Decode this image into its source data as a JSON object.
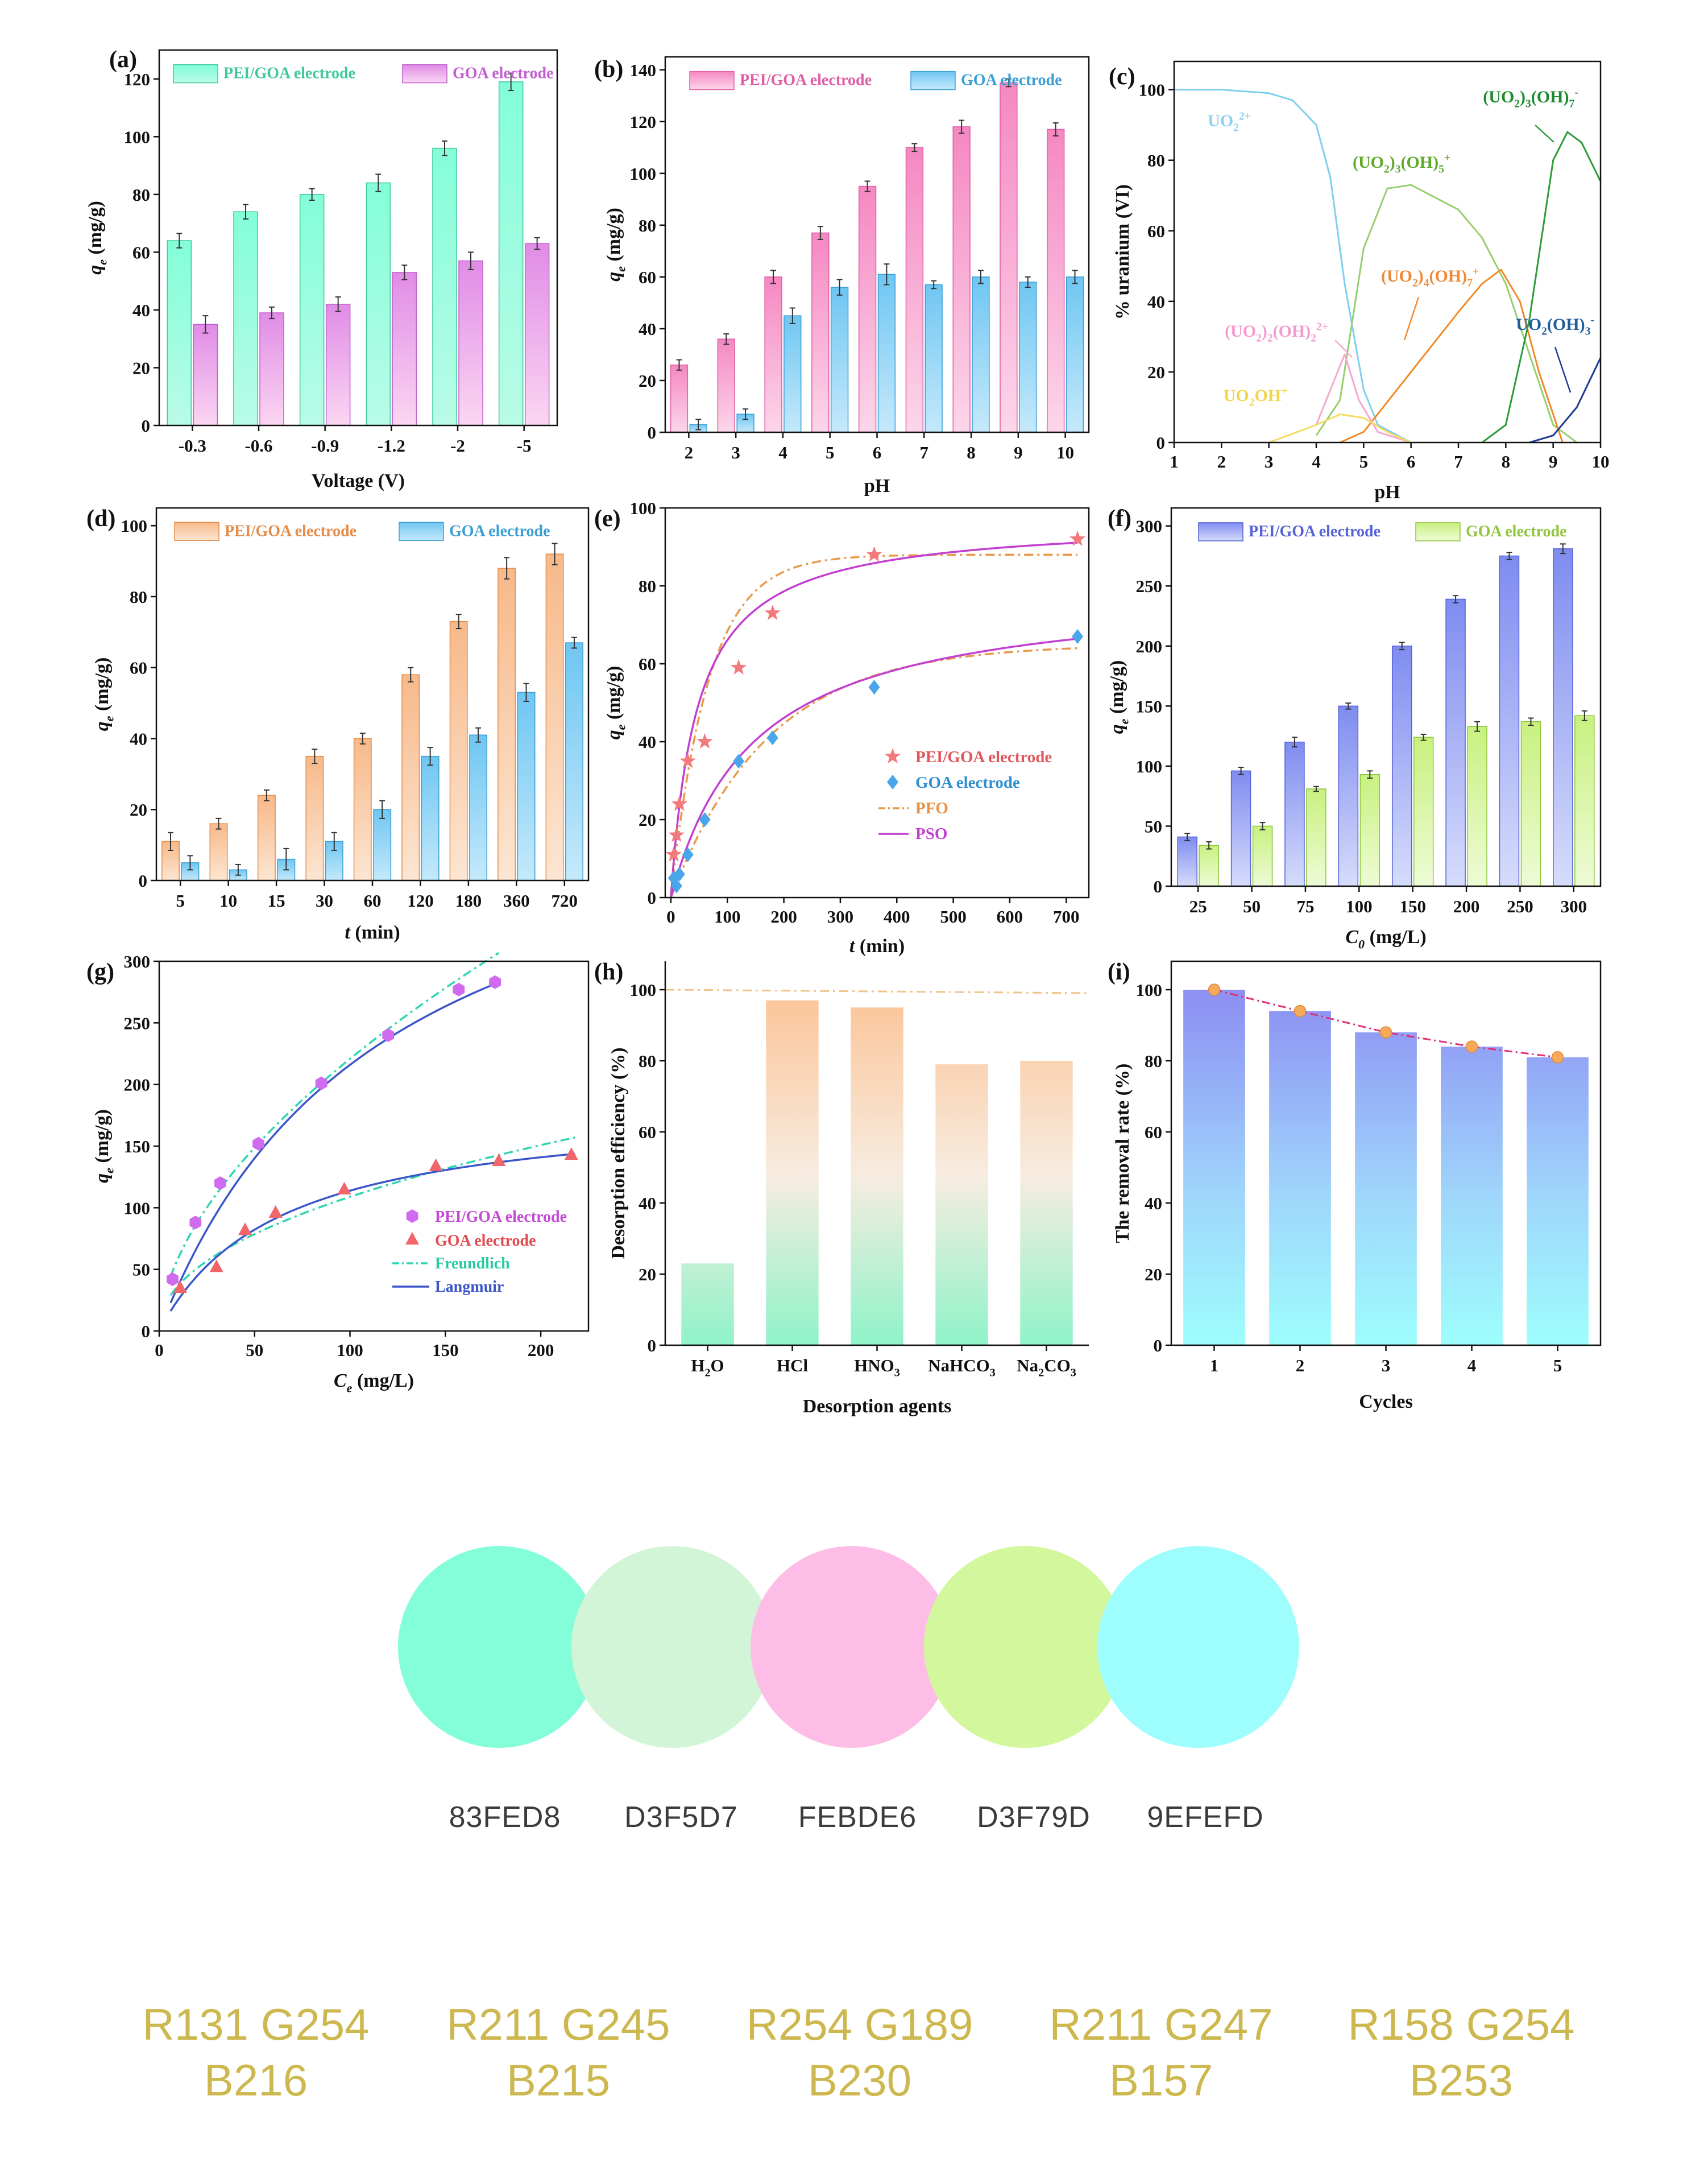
{
  "chart_data": [
    {
      "id": "a",
      "panel": "(a)",
      "type": "bar",
      "categories": [
        "-0.3",
        "-0.6",
        "-0.9",
        "-1.2",
        "-2",
        "-5"
      ],
      "series": [
        {
          "name": "PEI/GOA electrode",
          "values": [
            64,
            74,
            80,
            84,
            96,
            119
          ],
          "errors": [
            2.5,
            2.5,
            2,
            3,
            2.5,
            3
          ],
          "color": "#83FED8"
        },
        {
          "name": "GOA electrode",
          "values": [
            35,
            39,
            42,
            53,
            57,
            63
          ],
          "errors": [
            3,
            2,
            2.5,
            2.5,
            3,
            2
          ],
          "color": "#FEBDE6"
        }
      ],
      "xlabel": "Voltage (V)",
      "ylabel": "q_e (mg/g)",
      "ylim": [
        0,
        130
      ],
      "yticks": [
        "0",
        "20",
        "40",
        "60",
        "80",
        "100",
        "120"
      ],
      "legend": "top"
    },
    {
      "id": "b",
      "panel": "(b)",
      "type": "bar",
      "categories": [
        "2",
        "3",
        "4",
        "5",
        "6",
        "7",
        "8",
        "9",
        "10"
      ],
      "series": [
        {
          "name": "PEI/GOA electrode",
          "values": [
            26,
            36,
            60,
            77,
            95,
            110,
            118,
            135,
            117
          ],
          "errors": [
            2,
            2,
            2.5,
            2.5,
            2,
            1.5,
            2.5,
            1.5,
            2.5
          ],
          "color": "#F98CC5"
        },
        {
          "name": "GOA electrode",
          "values": [
            3,
            7,
            45,
            56,
            61,
            57,
            60,
            58,
            60
          ],
          "errors": [
            2,
            2,
            3,
            3,
            4,
            1.5,
            2.5,
            2,
            2.5
          ],
          "color": "#7FCBF2"
        }
      ],
      "xlabel": "pH",
      "ylabel": "q_e (mg/g)",
      "ylim": [
        0,
        145
      ],
      "yticks": [
        "0",
        "20",
        "40",
        "60",
        "80",
        "100",
        "120",
        "140"
      ],
      "legend": "top"
    },
    {
      "id": "c",
      "panel": "(c)",
      "type": "line",
      "xlabel": "pH",
      "ylabel": "% uranium (VI)",
      "xlim": [
        1,
        10
      ],
      "ylim": [
        0,
        108
      ],
      "xticks": [
        "1",
        "2",
        "3",
        "4",
        "5",
        "6",
        "7",
        "8",
        "9",
        "10"
      ],
      "yticks": [
        "0",
        "20",
        "40",
        "60",
        "80",
        "100"
      ],
      "series": [
        {
          "name": "UO2 2+",
          "color": "#7fd0ee",
          "x": [
            1,
            2,
            3,
            3.5,
            4,
            4.3,
            4.6,
            5,
            5.3,
            6
          ],
          "y": [
            100,
            100,
            99,
            97,
            90,
            75,
            45,
            15,
            5,
            0
          ]
        },
        {
          "name": "(UO2)3(OH)5 +",
          "color": "#98cf6e",
          "x": [
            4,
            4.5,
            5,
            5.5,
            6,
            7,
            7.5,
            8,
            8.5,
            9,
            9.5
          ],
          "y": [
            2,
            12,
            55,
            72,
            73,
            66,
            58,
            45,
            25,
            5,
            0
          ]
        },
        {
          "name": "(UO2)4(OH)7 +",
          "color": "#f28a28",
          "x": [
            4.5,
            5,
            6,
            7,
            7.5,
            7.9,
            8.3,
            8.7,
            9.2
          ],
          "y": [
            0,
            3,
            20,
            37,
            45,
            49,
            40,
            20,
            0
          ]
        },
        {
          "name": "(UO2)2(OH)2 2+",
          "color": "#f6a6d0",
          "x": [
            4,
            4.3,
            4.6,
            4.9,
            5.3,
            6
          ],
          "y": [
            5,
            15,
            25,
            12,
            3,
            0
          ]
        },
        {
          "name": "UO2OH+",
          "color": "#f3dc63",
          "x": [
            3,
            4,
            4.5,
            5,
            5.5,
            6
          ],
          "y": [
            0,
            5,
            8,
            7,
            3,
            0
          ]
        },
        {
          "name": "(UO2)3(OH)7 -",
          "color": "#2e9a3a",
          "x": [
            7.5,
            8,
            8.5,
            9,
            9.3,
            9.6,
            10
          ],
          "y": [
            0,
            5,
            35,
            80,
            88,
            85,
            74
          ]
        },
        {
          "name": "UO2(OH)3 -",
          "color": "#1f3a94",
          "x": [
            8.5,
            9,
            9.5,
            10
          ],
          "y": [
            0,
            2,
            10,
            24
          ]
        }
      ],
      "annotations": [
        "UO2 2+",
        "(UO2)3(OH)7 -",
        "(UO2)3(OH)5 +",
        "(UO2)4(OH)7 +",
        "(UO2)2(OH)2 2+",
        "UO2(OH)3 -",
        "UO2OH+"
      ]
    },
    {
      "id": "d",
      "panel": "(d)",
      "type": "bar",
      "categories": [
        "5",
        "10",
        "15",
        "30",
        "60",
        "120",
        "180",
        "360",
        "720"
      ],
      "series": [
        {
          "name": "PEI/GOA electrode",
          "values": [
            11,
            16,
            24,
            35,
            40,
            58,
            73,
            88,
            92
          ],
          "errors": [
            2.5,
            1.5,
            1.5,
            2,
            1.5,
            2,
            2,
            3,
            3
          ],
          "color": "#F9C69A"
        },
        {
          "name": "GOA electrode",
          "values": [
            5,
            3,
            6,
            11,
            20,
            35,
            41,
            53,
            67
          ],
          "errors": [
            2,
            1.5,
            3,
            2.5,
            2.5,
            2.5,
            2,
            2.5,
            1.5
          ],
          "color": "#7FCBF2"
        }
      ],
      "xlabel": "t (min)",
      "ylabel": "q_e (mg/g)",
      "ylim": [
        0,
        105
      ],
      "yticks": [
        "0",
        "20",
        "40",
        "60",
        "80",
        "100"
      ],
      "legend": "top"
    },
    {
      "id": "e",
      "panel": "(e)",
      "type": "scatter",
      "xlabel": "t (min)",
      "ylabel": "q_e (mg/g)",
      "xlim": [
        -10,
        740
      ],
      "ylim": [
        0,
        100
      ],
      "xticks": [
        "0",
        "100",
        "200",
        "300",
        "400",
        "500",
        "600",
        "700"
      ],
      "yticks": [
        "0",
        "20",
        "40",
        "60",
        "80",
        "100"
      ],
      "series": [
        {
          "name": "PEI/GOA electrode",
          "marker": "star",
          "color": "#f4797d",
          "x": [
            5,
            10,
            15,
            30,
            60,
            120,
            180,
            360,
            720
          ],
          "y": [
            11,
            16,
            24,
            35,
            40,
            59,
            73,
            88,
            92
          ]
        },
        {
          "name": "GOA electrode",
          "marker": "diamond",
          "color": "#4aa6ea",
          "x": [
            5,
            10,
            15,
            30,
            60,
            120,
            180,
            360,
            720
          ],
          "y": [
            5,
            3,
            6,
            11,
            20,
            35,
            41,
            54,
            67
          ]
        }
      ],
      "fits": [
        {
          "name": "PFO",
          "style": "dashdot",
          "color": "#e89a4b",
          "curves": [
            {
              "type": "pfo",
              "qe": 88,
              "k": 0.015
            },
            {
              "type": "pfo",
              "qe": 65,
              "k": 0.0058
            }
          ]
        },
        {
          "name": "PSO",
          "style": "solid",
          "color": "#c23fcf",
          "curves": [
            {
              "type": "pso",
              "qe": 97,
              "k": 0.00022
            },
            {
              "type": "pso",
              "qe": 80,
              "k": 8.5e-05
            }
          ]
        }
      ],
      "legend": "right"
    },
    {
      "id": "f",
      "panel": "(f)",
      "type": "bar",
      "categories": [
        "25",
        "50",
        "75",
        "100",
        "150",
        "200",
        "250",
        "300"
      ],
      "series": [
        {
          "name": "PEI/GOA electrode",
          "values": [
            41,
            96,
            120,
            150,
            200,
            239,
            275,
            281
          ],
          "errors": [
            3,
            3,
            4,
            2.5,
            3,
            3,
            3,
            4
          ],
          "color": "#8E9BF2"
        },
        {
          "name": "GOA electrode",
          "values": [
            34,
            50,
            81,
            93,
            124,
            133,
            137,
            142
          ],
          "errors": [
            3,
            3,
            2,
            3,
            2.5,
            4,
            3,
            4
          ],
          "color": "#D3F79D"
        }
      ],
      "xlabel": "C_0 (mg/L)",
      "ylabel": "q_e (mg/g)",
      "ylim": [
        0,
        315
      ],
      "yticks": [
        "0",
        "50",
        "100",
        "150",
        "200",
        "250",
        "300"
      ],
      "legend": "top"
    },
    {
      "id": "g",
      "panel": "(g)",
      "type": "scatter",
      "xlabel": "C_e (mg/L)",
      "ylabel": "q_e (mg/g)",
      "xlim": [
        0,
        225
      ],
      "ylim": [
        0,
        300
      ],
      "xticks": [
        "0",
        "50",
        "100",
        "150",
        "200"
      ],
      "yticks": [
        "0",
        "50",
        "100",
        "150",
        "200",
        "250",
        "300"
      ],
      "series": [
        {
          "name": "PEI/GOA electrode",
          "marker": "hexagon",
          "color": "#d06bf0",
          "x": [
            7,
            19,
            32,
            52,
            85,
            120,
            157,
            176
          ],
          "y": [
            42,
            88,
            120,
            152,
            201,
            240,
            277,
            283
          ]
        },
        {
          "name": "GOA electrode",
          "marker": "triangle",
          "color": "#f0666a",
          "x": [
            11,
            30,
            45,
            61,
            97,
            145,
            178,
            216
          ],
          "y": [
            35,
            52,
            82,
            96,
            115,
            134,
            138,
            143
          ]
        }
      ],
      "fits": [
        {
          "name": "Freundlich",
          "style": "dashdot",
          "color": "#2fd6b0",
          "curves": [
            {
              "type": "freundlich",
              "k": 16,
              "n": 0.57,
              "xmax": 178
            },
            {
              "type": "freundlich",
              "k": 12.5,
              "n": 0.47,
              "xmax": 218
            }
          ]
        },
        {
          "name": "Langmuir",
          "style": "solid",
          "color": "#3c56c9",
          "curves": [
            {
              "type": "langmuir",
              "qm": 470,
              "kl": 0.0085,
              "xmax": 178
            },
            {
              "type": "langmuir",
              "qm": 185,
              "kl": 0.016,
              "xmax": 218
            }
          ]
        }
      ],
      "legend": "lower-right"
    },
    {
      "id": "h",
      "panel": "(h)",
      "type": "bar",
      "categories": [
        "H2O",
        "HCl",
        "HNO3",
        "NaHCO3",
        "Na2CO3"
      ],
      "series": [
        {
          "name": "",
          "values": [
            23,
            97,
            95,
            79,
            80
          ]
        }
      ],
      "reference_line": 100,
      "xlabel": "Desorption agents",
      "ylabel": "Desorption efficiency (%)",
      "ylim": [
        0,
        108
      ],
      "yticks": [
        "0",
        "20",
        "40",
        "60",
        "80",
        "100"
      ]
    },
    {
      "id": "i",
      "panel": "(i)",
      "type": "bar",
      "categories": [
        "1",
        "2",
        "3",
        "4",
        "5"
      ],
      "series": [
        {
          "name": "",
          "values": [
            100,
            94,
            88,
            84,
            81
          ]
        }
      ],
      "xlabel": "Cycles",
      "ylabel": "The removal rate (%)",
      "ylim": [
        0,
        108
      ],
      "yticks": [
        "0",
        "20",
        "40",
        "60",
        "80",
        "100"
      ]
    }
  ],
  "palette": [
    {
      "hex": "83FED8",
      "rgb_line1": "R131 G254",
      "rgb_line2": "B216",
      "color": "#83FED8"
    },
    {
      "hex": "D3F5D7",
      "rgb_line1": "R211 G245",
      "rgb_line2": "B215",
      "color": "#D3F5D7"
    },
    {
      "hex": "FEBDE6",
      "rgb_line1": "R254 G189",
      "rgb_line2": "B230",
      "color": "#FEBDE6"
    },
    {
      "hex": "D3F79D",
      "rgb_line1": "R211 G247",
      "rgb_line2": "B157",
      "color": "#D3F79D"
    },
    {
      "hex": "9EFEFD",
      "rgb_line1": "R158 G254",
      "rgb_line2": "B253",
      "color": "#9EFEFD"
    }
  ]
}
